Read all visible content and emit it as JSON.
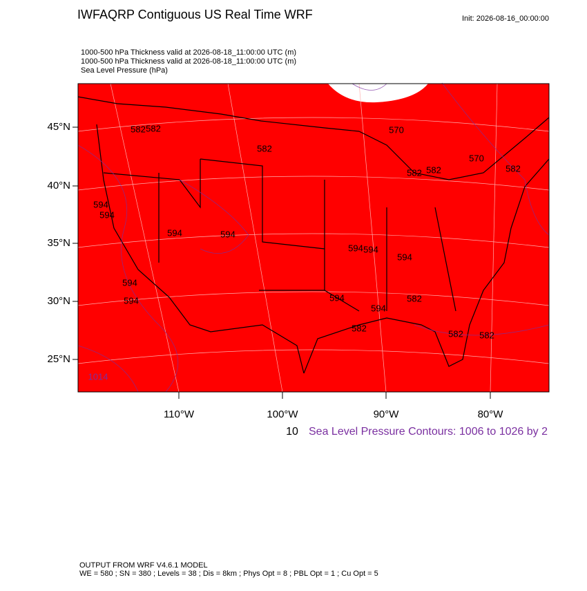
{
  "header": {
    "title": "IWFAQRP Contiguous US Real Time WRF",
    "init": "Init: 2026-08-16_00:00:00",
    "fields": [
      "1000-500 hPa Thickness valid at 2026-08-18_11:00:00 UTC   (m)",
      "1000-500 hPa Thickness valid at 2026-08-18_11:00:00 UTC   (m)",
      "Sea Level Pressure   (hPa)"
    ]
  },
  "map": {
    "lat_labels": [
      "45°N",
      "40°N",
      "35°N",
      "30°N",
      "25°N"
    ],
    "lon_labels": [
      "110°W",
      "100°W",
      "90°W",
      "80°W"
    ],
    "contour_labels": [
      "582",
      "582",
      "582",
      "570",
      "582",
      "582",
      "570",
      "582",
      "594",
      "594",
      "594",
      "594",
      "594",
      "594",
      "594",
      "594",
      "594",
      "594",
      "594",
      "582",
      "582",
      "582",
      "582",
      "1014"
    ]
  },
  "legend": {
    "thickness": "10",
    "pressure": "Sea Level Pressure Contours: 1006 to 1026 by 2"
  },
  "footer": {
    "model": "OUTPUT FROM WRF V4.6.1 MODEL",
    "config": "WE = 580 ; SN = 380 ; Levels = 38 ; Dis = 8km ; Phys Opt = 8 ; PBL Opt = 1 ; Cu Opt = 5"
  }
}
